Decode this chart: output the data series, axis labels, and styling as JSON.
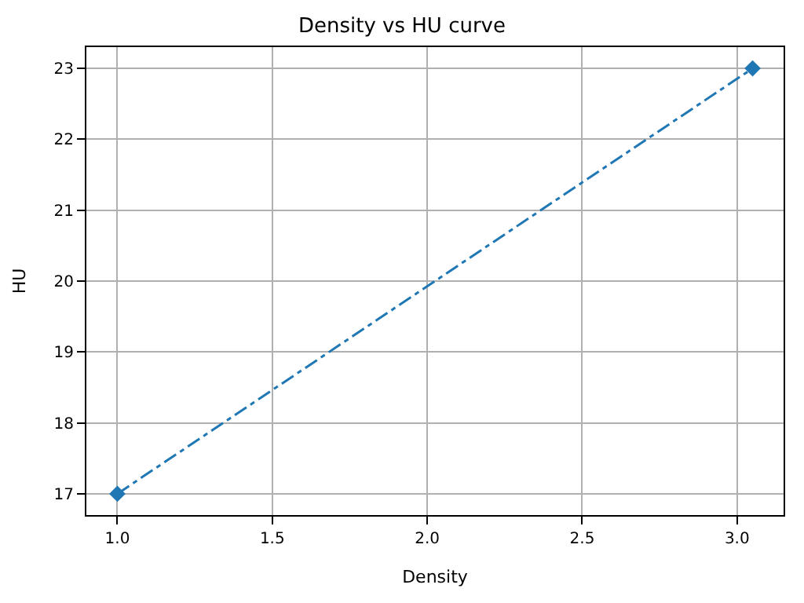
{
  "chart_data": {
    "type": "line",
    "title": "Density vs HU curve",
    "xlabel": "Density",
    "ylabel": "HU",
    "x": [
      1.0,
      3.05
    ],
    "series": [
      {
        "color": "#1f77b4",
        "values": [
          17,
          23
        ]
      }
    ],
    "xlim": [
      0.9,
      3.15
    ],
    "xticks": [
      {
        "value": 1.0,
        "label": "1.0"
      },
      {
        "value": 1.5,
        "label": "1.5"
      },
      {
        "value": 2.0,
        "label": "2.0"
      },
      {
        "value": 2.5,
        "label": "2.5"
      },
      {
        "value": 3.0,
        "label": "3.0"
      }
    ],
    "ylim": [
      16.7,
      23.3
    ],
    "yticks": [
      17,
      18,
      19,
      20,
      21,
      22,
      23
    ],
    "grid": true,
    "marker": "diamond",
    "line_style": "dashdot"
  }
}
